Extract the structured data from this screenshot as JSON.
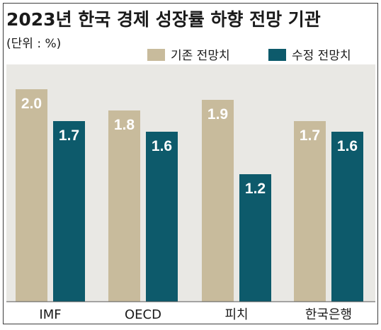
{
  "chart_data": {
    "type": "bar",
    "title": "2023년 한국 경제 성장률 하향 전망 기관",
    "unit_label": "(단위 : %)",
    "categories": [
      "IMF",
      "OECD",
      "피치",
      "한국은행"
    ],
    "series": [
      {
        "name": "기존 전망치",
        "values": [
          2.0,
          1.8,
          1.9,
          1.7
        ]
      },
      {
        "name": "수정 전망치",
        "values": [
          1.7,
          1.6,
          1.2,
          1.6
        ]
      }
    ],
    "data_labels": [
      [
        "2.0",
        "1.8",
        "1.9",
        "1.7"
      ],
      [
        "1.7",
        "1.6",
        "1.2",
        "1.6"
      ]
    ],
    "xlabel": "",
    "ylabel": "",
    "ylim": [
      0,
      2.1
    ],
    "grid": false,
    "legend_position": "top-right"
  },
  "colors": {
    "series": [
      "#c8bb9c",
      "#0d5a6b"
    ],
    "value_label": [
      "#ffffff",
      "#ffffff"
    ],
    "plot_background": "#e9e8e4",
    "axis": "#555555"
  }
}
